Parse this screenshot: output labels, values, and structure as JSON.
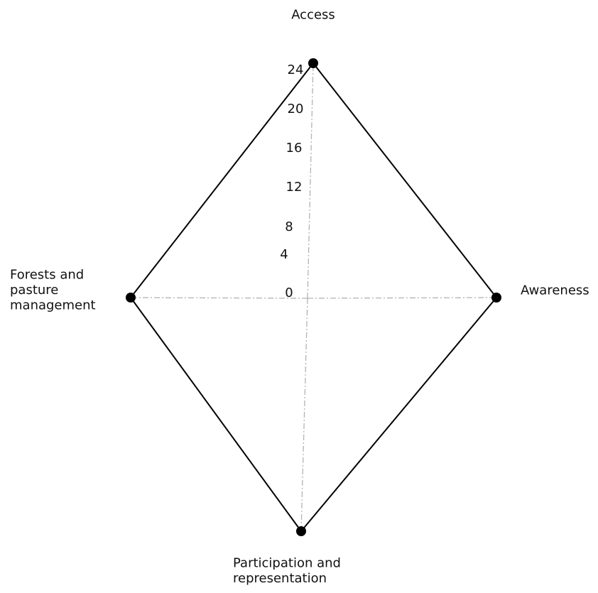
{
  "chart_data": {
    "type": "radar",
    "title": "",
    "axes": [
      {
        "name": "Access",
        "label_lines": [
          "Access"
        ]
      },
      {
        "name": "Awareness",
        "label_lines": [
          "Awareness"
        ]
      },
      {
        "name": "Participation and representation",
        "label_lines": [
          "Participation and",
          "representation"
        ]
      },
      {
        "name": "Forests and pasture management",
        "label_lines": [
          "Forests and",
          "pasture",
          "management"
        ]
      }
    ],
    "radial_ticks": [
      "0",
      "4",
      "8",
      "12",
      "16",
      "20",
      "24"
    ],
    "series": [
      {
        "values": [
          24,
          24,
          24,
          24
        ]
      }
    ],
    "grid": "dash-dot spokes",
    "colors": {
      "series": "#000000",
      "grid": "#b3b3b3"
    }
  }
}
